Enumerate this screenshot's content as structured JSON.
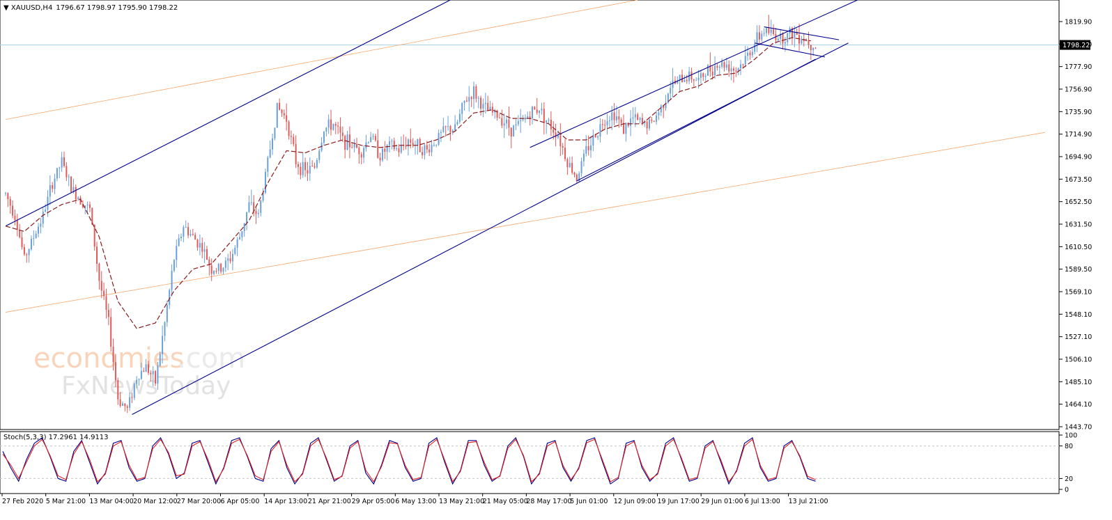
{
  "chart_data": [
    {
      "type": "candlestick",
      "symbol_header": "XAUUSD,H4",
      "ohlc_header": "1796.67 1798.97 1795.90 1798.22",
      "current_price_label": "1798.22",
      "current_price": 1798.22,
      "y_ticks": [
        "1819.90",
        "1798.90",
        "1777.90",
        "1756.90",
        "1735.90",
        "1714.90",
        "1694.90",
        "1673.50",
        "1652.50",
        "1631.50",
        "1610.50",
        "1589.50",
        "1569.10",
        "1548.10",
        "1527.10",
        "1506.10",
        "1485.10",
        "1464.10",
        "1443.70"
      ],
      "ylim": [
        1443.7,
        1819.9
      ],
      "x_labels": [
        "27 Feb 2020",
        "5 Mar 21:00",
        "13 Mar 04:00",
        "20 Mar 12:00",
        "27 Mar 20:00",
        "6 Apr 05:00",
        "14 Apr 13:00",
        "21 Apr 21:00",
        "29 Apr 05:00",
        "6 May 13:00",
        "13 May 21:00",
        "21 May 05:00",
        "28 May 17:00",
        "5 Jun 01:00",
        "12 Jun 09:00",
        "19 Jun 17:00",
        "29 Jun 01:00",
        "6 Jul 13:00",
        "13 Jul 21:00"
      ],
      "close_path": [
        [
          0,
          1660
        ],
        [
          2,
          1640
        ],
        [
          4,
          1600
        ],
        [
          6,
          1620
        ],
        [
          8,
          1640
        ],
        [
          10,
          1670
        ],
        [
          12,
          1690
        ],
        [
          14,
          1665
        ],
        [
          16,
          1655
        ],
        [
          18,
          1645
        ],
        [
          20,
          1580
        ],
        [
          22,
          1540
        ],
        [
          24,
          1470
        ],
        [
          26,
          1460
        ],
        [
          28,
          1490
        ],
        [
          30,
          1500
        ],
        [
          32,
          1485
        ],
        [
          34,
          1540
        ],
        [
          36,
          1600
        ],
        [
          38,
          1630
        ],
        [
          40,
          1620
        ],
        [
          42,
          1610
        ],
        [
          44,
          1590
        ],
        [
          46,
          1590
        ],
        [
          48,
          1600
        ],
        [
          50,
          1620
        ],
        [
          52,
          1650
        ],
        [
          54,
          1640
        ],
        [
          56,
          1690
        ],
        [
          58,
          1740
        ],
        [
          60,
          1730
        ],
        [
          62,
          1690
        ],
        [
          64,
          1680
        ],
        [
          66,
          1685
        ],
        [
          68,
          1720
        ],
        [
          70,
          1725
        ],
        [
          72,
          1710
        ],
        [
          74,
          1705
        ],
        [
          76,
          1700
        ],
        [
          78,
          1715
        ],
        [
          80,
          1695
        ],
        [
          82,
          1705
        ],
        [
          84,
          1700
        ],
        [
          86,
          1710
        ],
        [
          88,
          1705
        ],
        [
          90,
          1700
        ],
        [
          92,
          1710
        ],
        [
          94,
          1720
        ],
        [
          96,
          1720
        ],
        [
          98,
          1745
        ],
        [
          100,
          1755
        ],
        [
          102,
          1740
        ],
        [
          104,
          1735
        ],
        [
          106,
          1730
        ],
        [
          108,
          1720
        ],
        [
          110,
          1725
        ],
        [
          112,
          1735
        ],
        [
          114,
          1740
        ],
        [
          116,
          1725
        ],
        [
          118,
          1715
        ],
        [
          120,
          1690
        ],
        [
          122,
          1675
        ],
        [
          124,
          1700
        ],
        [
          126,
          1715
        ],
        [
          128,
          1730
        ],
        [
          130,
          1735
        ],
        [
          132,
          1720
        ],
        [
          134,
          1730
        ],
        [
          136,
          1725
        ],
        [
          138,
          1725
        ],
        [
          140,
          1740
        ],
        [
          142,
          1760
        ],
        [
          144,
          1765
        ],
        [
          146,
          1770
        ],
        [
          148,
          1765
        ],
        [
          150,
          1775
        ],
        [
          152,
          1780
        ],
        [
          154,
          1780
        ],
        [
          156,
          1775
        ],
        [
          158,
          1785
        ],
        [
          160,
          1800
        ],
        [
          162,
          1812
        ],
        [
          164,
          1808
        ],
        [
          166,
          1805
        ],
        [
          168,
          1810
        ],
        [
          170,
          1806
        ],
        [
          172,
          1800
        ],
        [
          173,
          1798
        ]
      ],
      "ma_path": [
        [
          0,
          1630
        ],
        [
          4,
          1625
        ],
        [
          8,
          1640
        ],
        [
          12,
          1650
        ],
        [
          16,
          1655
        ],
        [
          20,
          1620
        ],
        [
          24,
          1560
        ],
        [
          28,
          1535
        ],
        [
          32,
          1540
        ],
        [
          36,
          1570
        ],
        [
          40,
          1590
        ],
        [
          44,
          1595
        ],
        [
          48,
          1615
        ],
        [
          52,
          1635
        ],
        [
          56,
          1670
        ],
        [
          60,
          1700
        ],
        [
          64,
          1698
        ],
        [
          68,
          1705
        ],
        [
          72,
          1710
        ],
        [
          76,
          1705
        ],
        [
          80,
          1703
        ],
        [
          84,
          1705
        ],
        [
          88,
          1705
        ],
        [
          92,
          1710
        ],
        [
          96,
          1718
        ],
        [
          100,
          1735
        ],
        [
          104,
          1738
        ],
        [
          108,
          1730
        ],
        [
          112,
          1730
        ],
        [
          116,
          1725
        ],
        [
          120,
          1710
        ],
        [
          124,
          1710
        ],
        [
          128,
          1720
        ],
        [
          132,
          1725
        ],
        [
          136,
          1725
        ],
        [
          140,
          1740
        ],
        [
          144,
          1755
        ],
        [
          148,
          1760
        ],
        [
          152,
          1770
        ],
        [
          156,
          1772
        ],
        [
          160,
          1785
        ],
        [
          164,
          1800
        ],
        [
          168,
          1805
        ],
        [
          172,
          1802
        ]
      ],
      "trendlines": [
        {
          "kind": "blue-channel-upper",
          "from": [
            0,
            1630
          ],
          "to": [
            95,
            1840
          ]
        },
        {
          "kind": "blue-channel-lower",
          "from": [
            27,
            1455
          ],
          "to": [
            173,
            1785
          ]
        },
        {
          "kind": "blue-short-upper",
          "from": [
            112,
            1703
          ],
          "to": [
            182,
            1840
          ]
        },
        {
          "kind": "blue-short-lower",
          "from": [
            122,
            1672
          ],
          "to": [
            180,
            1800
          ]
        },
        {
          "kind": "flag-top",
          "from": [
            162,
            1815
          ],
          "to": [
            178,
            1803
          ]
        },
        {
          "kind": "flag-bottom",
          "from": [
            160,
            1800
          ],
          "to": [
            175,
            1787
          ]
        },
        {
          "kind": "orange-upper",
          "from": [
            0,
            1729
          ],
          "to": [
            135,
            1840
          ]
        },
        {
          "kind": "orange-lower",
          "from": [
            0,
            1550
          ],
          "to": [
            222,
            1717
          ]
        }
      ]
    },
    {
      "type": "line",
      "indicator_label": "Stoch(5,3,3) 17.2961 14.9113",
      "y_ticks": [
        "100",
        "80",
        "20",
        "0"
      ],
      "ylim": [
        0,
        100
      ],
      "levels": [
        80,
        20
      ],
      "series": [
        {
          "color": "#00008b",
          "values": [
            70,
            40,
            15,
            55,
            85,
            95,
            60,
            20,
            15,
            70,
            90,
            50,
            10,
            30,
            85,
            90,
            40,
            15,
            20,
            80,
            95,
            65,
            20,
            30,
            85,
            90,
            50,
            10,
            40,
            90,
            95,
            60,
            20,
            15,
            75,
            90,
            40,
            10,
            30,
            85,
            95,
            55,
            15,
            25,
            80,
            90,
            30,
            10,
            45,
            90,
            85,
            40,
            15,
            20,
            85,
            95,
            50,
            10,
            35,
            90,
            90,
            45,
            15,
            25,
            80,
            95,
            60,
            10,
            30,
            85,
            90,
            40,
            15,
            40,
            90,
            95,
            50,
            10,
            20,
            85,
            90,
            40,
            15,
            30,
            85,
            95,
            55,
            15,
            20,
            80,
            90,
            50,
            10,
            35,
            85,
            95,
            40,
            15,
            20,
            80,
            90,
            60,
            20,
            15
          ]
        },
        {
          "color": "#e02020",
          "values": [
            65,
            45,
            20,
            50,
            80,
            92,
            62,
            25,
            18,
            65,
            88,
            55,
            14,
            28,
            80,
            88,
            45,
            18,
            22,
            75,
            92,
            68,
            25,
            28,
            80,
            88,
            55,
            14,
            38,
            85,
            92,
            62,
            25,
            18,
            70,
            88,
            45,
            14,
            28,
            80,
            92,
            58,
            18,
            24,
            76,
            88,
            35,
            14,
            42,
            86,
            84,
            44,
            18,
            22,
            80,
            92,
            54,
            14,
            33,
            86,
            88,
            50,
            18,
            24,
            76,
            92,
            62,
            14,
            28,
            80,
            88,
            44,
            18,
            38,
            86,
            92,
            54,
            14,
            22,
            80,
            88,
            44,
            18,
            28,
            80,
            92,
            58,
            18,
            22,
            76,
            88,
            54,
            14,
            33,
            80,
            92,
            44,
            18,
            22,
            76,
            88,
            62,
            24,
            18
          ]
        }
      ]
    }
  ],
  "colors": {
    "bull": "#6a9fd8",
    "bear": "#e05a5a",
    "channel": "#00008b",
    "orange": "#f5a66a",
    "ma": "#8b1a1a",
    "price_line": "#a9d4e8",
    "grid": "#c8c8c8"
  }
}
